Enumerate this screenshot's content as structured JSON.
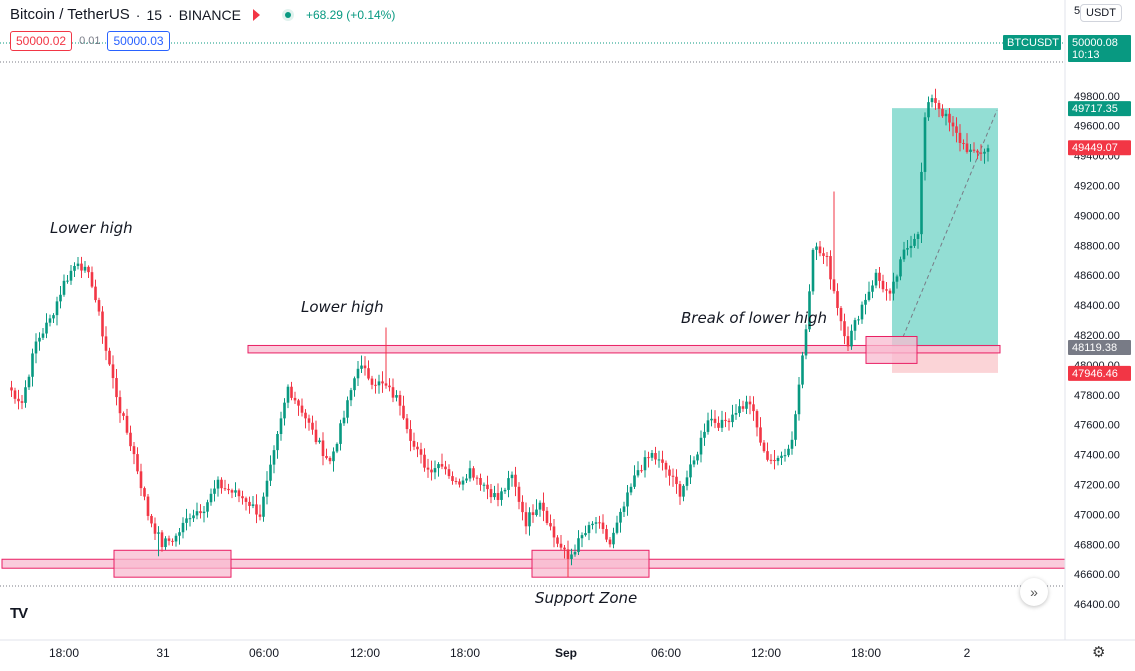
{
  "header": {
    "symbol": "Bitcoin / TetherUS",
    "interval": "15",
    "exchange": "BINANCE",
    "change": "+68.29 (+0.14%)"
  },
  "quotes": {
    "sell": "50000.02",
    "spread": "0.01",
    "buy": "50000.03"
  },
  "currency_button": "USDT",
  "icons": {
    "flag": "red-flag-icon",
    "market_status": "green-dot-icon",
    "scroll": "double-chevron-right-icon",
    "settings": "gear-icon",
    "logo": "tradingview-logo-icon"
  },
  "colors": {
    "up": "#089981",
    "down": "#f23645",
    "zone_fill": "#f8bbd0",
    "zone_stroke": "#e91e63",
    "profit": "#80d8cc",
    "loss": "#fbcfd3"
  },
  "chart_data": {
    "type": "candlestick",
    "title": "Bitcoin / TetherUS · 15 · BINANCE",
    "x_ticks": [
      "18:00",
      "31",
      "06:00",
      "12:00",
      "18:00",
      "Sep",
      "06:00",
      "12:00",
      "18:00",
      "2"
    ],
    "y_ticks": [
      "46400.00",
      "46600.00",
      "46800.00",
      "47000.00",
      "47200.00",
      "47400.00",
      "47600.00",
      "47800.00",
      "48000.00",
      "48200.00",
      "48400.00",
      "48600.00",
      "48800.00",
      "49000.00",
      "49200.00",
      "49400.00",
      "49600.00",
      "49800.00"
    ],
    "ylim": [
      46200,
      50240
    ],
    "bar_interval_minutes": 15,
    "close_path": [
      [
        0,
        47850
      ],
      [
        4,
        47750
      ],
      [
        8,
        48150
      ],
      [
        12,
        48300
      ],
      [
        16,
        48550
      ],
      [
        20,
        48700
      ],
      [
        24,
        48550
      ],
      [
        28,
        48100
      ],
      [
        32,
        47700
      ],
      [
        36,
        47400
      ],
      [
        40,
        47000
      ],
      [
        44,
        46800
      ],
      [
        48,
        46850
      ],
      [
        52,
        47000
      ],
      [
        56,
        47050
      ],
      [
        60,
        47200
      ],
      [
        64,
        47150
      ],
      [
        68,
        47100
      ],
      [
        72,
        47000
      ],
      [
        76,
        47400
      ],
      [
        80,
        47850
      ],
      [
        84,
        47700
      ],
      [
        88,
        47500
      ],
      [
        92,
        47350
      ],
      [
        96,
        47650
      ],
      [
        100,
        48000
      ],
      [
        104,
        47900
      ],
      [
        108,
        47850
      ],
      [
        112,
        47750
      ],
      [
        116,
        47450
      ],
      [
        120,
        47300
      ],
      [
        124,
        47350
      ],
      [
        128,
        47200
      ],
      [
        132,
        47300
      ],
      [
        136,
        47200
      ],
      [
        140,
        47100
      ],
      [
        144,
        47250
      ],
      [
        148,
        46950
      ],
      [
        152,
        47100
      ],
      [
        156,
        46850
      ],
      [
        160,
        46700
      ],
      [
        164,
        46850
      ],
      [
        168,
        46950
      ],
      [
        172,
        46800
      ],
      [
        176,
        47050
      ],
      [
        180,
        47300
      ],
      [
        184,
        47400
      ],
      [
        188,
        47300
      ],
      [
        192,
        47150
      ],
      [
        196,
        47350
      ],
      [
        200,
        47650
      ],
      [
        204,
        47600
      ],
      [
        208,
        47700
      ],
      [
        212,
        47750
      ],
      [
        216,
        47400
      ],
      [
        220,
        47350
      ],
      [
        224,
        47500
      ],
      [
        228,
        48250
      ],
      [
        230,
        48800
      ],
      [
        234,
        48700
      ],
      [
        238,
        48300
      ],
      [
        240,
        48150
      ],
      [
        244,
        48400
      ],
      [
        248,
        48600
      ],
      [
        252,
        48450
      ],
      [
        256,
        48750
      ],
      [
        260,
        48900
      ],
      [
        262,
        49650
      ],
      [
        264,
        49800
      ],
      [
        268,
        49650
      ],
      [
        272,
        49500
      ],
      [
        276,
        49400
      ],
      [
        280,
        49449.07
      ]
    ],
    "highlights": {
      "lower_high_1": 48700,
      "lower_high_2": 48200,
      "last_swing_high": 49160,
      "low_31": 46720,
      "low_sep": 46580
    },
    "annotations": [
      {
        "text": "Lower high"
      },
      {
        "text": "Lower high"
      },
      {
        "text": "Break of lower high"
      },
      {
        "text": "Support Zone"
      }
    ],
    "zones": [
      {
        "name": "resistance-line",
        "from": 48080,
        "to": 48130
      },
      {
        "name": "support-zone",
        "from": 46640,
        "to": 46700
      },
      {
        "name": "support-box-1",
        "from": 46580,
        "to": 46760
      },
      {
        "name": "support-box-2",
        "from": 46580,
        "to": 46760
      },
      {
        "name": "break-box",
        "from": 48010,
        "to": 48190
      }
    ],
    "position": {
      "entry": 48119.38,
      "target": 49717.35,
      "stop": 47946.46
    },
    "price_labels": [
      {
        "text": "BTCUSDT",
        "value": 50000.08
      },
      {
        "text": "50000.08",
        "sub": "10:13",
        "value": 50000.08
      },
      {
        "text": "49717.35",
        "value": 49717.35
      },
      {
        "text": "49449.07",
        "value": 49449.07
      },
      {
        "text": "48119.38",
        "value": 48119.38
      },
      {
        "text": "47946.46",
        "value": 47946.46
      }
    ],
    "partial_label": "5",
    "grid": false
  }
}
